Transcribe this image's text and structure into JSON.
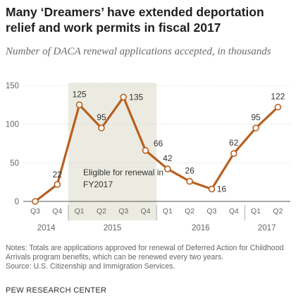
{
  "title": "Many ‘Dreamers’ have extended deportation relief and work permits in fiscal 2017",
  "subtitle": "Number of DACA renewal applications accepted, in thousands",
  "chart_data": {
    "type": "line",
    "x": [
      "Q3",
      "Q4",
      "Q1",
      "Q2",
      "Q3",
      "Q4",
      "Q1",
      "Q2",
      "Q3",
      "Q4",
      "Q1",
      "Q2"
    ],
    "years": [
      {
        "label": "2014",
        "from": 0,
        "to": 1
      },
      {
        "label": "2015",
        "from": 2,
        "to": 5
      },
      {
        "label": "2016",
        "from": 6,
        "to": 9
      },
      {
        "label": "2017",
        "from": 10,
        "to": 11
      }
    ],
    "series": [
      {
        "values": [
          0,
          22,
          125,
          95,
          135,
          66,
          42,
          26,
          16,
          62,
          95,
          122
        ],
        "color": "#b8601f"
      }
    ],
    "data_labels": [
      "",
      "22",
      "125",
      "95",
      "135",
      "66",
      "42",
      "26",
      "16",
      "62",
      "95",
      "122"
    ],
    "y_ticks": [
      0,
      50,
      100,
      150
    ],
    "ylim": [
      0,
      150
    ],
    "grid": true,
    "highlight": {
      "from": 2,
      "to": 5,
      "label_lines": [
        "Eligible for renewal in",
        "FY2017"
      ],
      "color": "#ecebe1"
    }
  },
  "notes": "Notes: Totals are applications approved for renewal of Deferred Action for Childhood Arrivals program benefits, which can be renewed every two years.",
  "source": "Source: U.S. Citizenship and Immigration Services.",
  "org": "PEW RESEARCH CENTER"
}
